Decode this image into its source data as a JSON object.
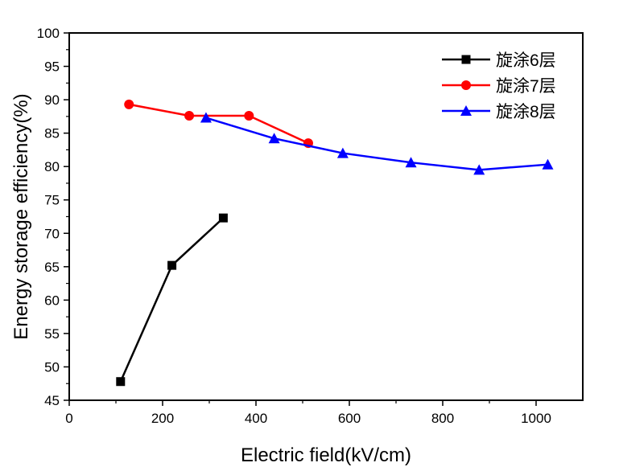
{
  "chart_data": {
    "type": "line",
    "title": "",
    "xlabel": "Electric field(kV/cm)",
    "ylabel": "Energy storage efficiency(%)",
    "xlim": [
      0,
      1100
    ],
    "ylim": [
      45,
      100
    ],
    "xticks": [
      0,
      200,
      400,
      600,
      800,
      1000
    ],
    "yticks": [
      45,
      50,
      55,
      60,
      65,
      70,
      75,
      80,
      85,
      90,
      95,
      100
    ],
    "grid": false,
    "legend_position": "top-right",
    "series": [
      {
        "name": "旋涂6层",
        "color": "#000000",
        "marker": "square",
        "x": [
          110,
          220,
          330
        ],
        "y": [
          47.8,
          65.2,
          72.3
        ]
      },
      {
        "name": "旋涂7层",
        "color": "#ff0000",
        "marker": "circle",
        "x": [
          128,
          257,
          385,
          512
        ],
        "y": [
          89.3,
          87.6,
          87.6,
          83.5
        ]
      },
      {
        "name": "旋涂8层",
        "color": "#0000ff",
        "marker": "triangle",
        "x": [
          293,
          439,
          586,
          732,
          878,
          1025
        ],
        "y": [
          87.3,
          84.2,
          82.0,
          80.6,
          79.5,
          80.3
        ]
      }
    ]
  }
}
